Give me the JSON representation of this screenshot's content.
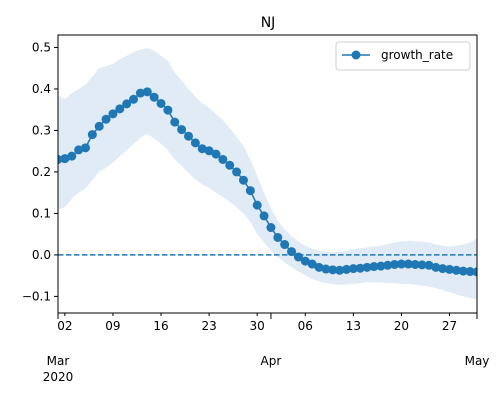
{
  "chart_data": {
    "type": "line",
    "title": "NJ",
    "xlabel": "",
    "ylabel": "",
    "x_start": "2020-03-01",
    "x_end": "2020-05-01",
    "ylim": [
      -0.14,
      0.53
    ],
    "y_ticks": [
      -0.1,
      0.0,
      0.1,
      0.2,
      0.3,
      0.4,
      0.5
    ],
    "y_tick_labels": [
      "−0.1",
      "0.0",
      "0.1",
      "0.2",
      "0.3",
      "0.4",
      "0.5"
    ],
    "x_minor_ticks": [
      {
        "date": "2020-03-02",
        "label": "02"
      },
      {
        "date": "2020-03-09",
        "label": "09"
      },
      {
        "date": "2020-03-16",
        "label": "16"
      },
      {
        "date": "2020-03-23",
        "label": "23"
      },
      {
        "date": "2020-03-30",
        "label": "30"
      },
      {
        "date": "2020-04-06",
        "label": "06"
      },
      {
        "date": "2020-04-13",
        "label": "13"
      },
      {
        "date": "2020-04-20",
        "label": "20"
      },
      {
        "date": "2020-04-27",
        "label": "27"
      }
    ],
    "x_major_ticks": [
      {
        "date": "2020-03-01",
        "label": "Mar",
        "sublabel": "2020"
      },
      {
        "date": "2020-04-01",
        "label": "Apr",
        "sublabel": ""
      },
      {
        "date": "2020-05-01",
        "label": "May",
        "sublabel": ""
      }
    ],
    "legend": {
      "position": "upper-right"
    },
    "reference_line": {
      "y": 0.0,
      "style": "dashed"
    },
    "series": [
      {
        "name": "growth_rate",
        "color": "#1f77b4",
        "band_color": "#dbe8f5",
        "x": [
          "2020-03-01",
          "2020-03-02",
          "2020-03-03",
          "2020-03-04",
          "2020-03-05",
          "2020-03-06",
          "2020-03-07",
          "2020-03-08",
          "2020-03-09",
          "2020-03-10",
          "2020-03-11",
          "2020-03-12",
          "2020-03-13",
          "2020-03-14",
          "2020-03-15",
          "2020-03-16",
          "2020-03-17",
          "2020-03-18",
          "2020-03-19",
          "2020-03-20",
          "2020-03-21",
          "2020-03-22",
          "2020-03-23",
          "2020-03-24",
          "2020-03-25",
          "2020-03-26",
          "2020-03-27",
          "2020-03-28",
          "2020-03-29",
          "2020-03-30",
          "2020-03-31",
          "2020-04-01",
          "2020-04-02",
          "2020-04-03",
          "2020-04-04",
          "2020-04-05",
          "2020-04-06",
          "2020-04-07",
          "2020-04-08",
          "2020-04-09",
          "2020-04-10",
          "2020-04-11",
          "2020-04-12",
          "2020-04-13",
          "2020-04-14",
          "2020-04-15",
          "2020-04-16",
          "2020-04-17",
          "2020-04-18",
          "2020-04-19",
          "2020-04-20",
          "2020-04-21",
          "2020-04-22",
          "2020-04-23",
          "2020-04-24",
          "2020-04-25",
          "2020-04-26",
          "2020-04-27",
          "2020-04-28",
          "2020-04-29",
          "2020-04-30",
          "2020-05-01"
        ],
        "values": [
          0.23,
          0.232,
          0.238,
          0.253,
          0.258,
          0.29,
          0.31,
          0.327,
          0.34,
          0.352,
          0.364,
          0.375,
          0.39,
          0.393,
          0.38,
          0.365,
          0.349,
          0.32,
          0.302,
          0.286,
          0.27,
          0.256,
          0.251,
          0.243,
          0.23,
          0.216,
          0.2,
          0.18,
          0.155,
          0.12,
          0.094,
          0.066,
          0.042,
          0.025,
          0.008,
          -0.005,
          -0.015,
          -0.022,
          -0.03,
          -0.034,
          -0.036,
          -0.037,
          -0.035,
          -0.033,
          -0.032,
          -0.03,
          -0.028,
          -0.027,
          -0.025,
          -0.023,
          -0.022,
          -0.022,
          -0.023,
          -0.024,
          -0.025,
          -0.03,
          -0.033,
          -0.035,
          -0.037,
          -0.039,
          -0.04,
          -0.041
        ],
        "upper": [
          0.385,
          0.375,
          0.39,
          0.4,
          0.41,
          0.43,
          0.45,
          0.455,
          0.46,
          0.472,
          0.48,
          0.488,
          0.495,
          0.498,
          0.492,
          0.48,
          0.468,
          0.44,
          0.42,
          0.4,
          0.382,
          0.365,
          0.355,
          0.34,
          0.325,
          0.305,
          0.285,
          0.262,
          0.23,
          0.19,
          0.15,
          0.112,
          0.082,
          0.062,
          0.045,
          0.032,
          0.022,
          0.015,
          0.01,
          0.008,
          0.007,
          0.007,
          0.01,
          0.014,
          0.016,
          0.018,
          0.02,
          0.022,
          0.026,
          0.03,
          0.032,
          0.034,
          0.033,
          0.032,
          0.03,
          0.025,
          0.022,
          0.02,
          0.022,
          0.025,
          0.03,
          0.04
        ],
        "lower": [
          0.11,
          0.115,
          0.135,
          0.15,
          0.16,
          0.18,
          0.2,
          0.21,
          0.222,
          0.238,
          0.252,
          0.268,
          0.282,
          0.292,
          0.28,
          0.268,
          0.252,
          0.23,
          0.214,
          0.198,
          0.182,
          0.17,
          0.162,
          0.15,
          0.14,
          0.128,
          0.115,
          0.1,
          0.08,
          0.05,
          0.03,
          0.01,
          -0.005,
          -0.018,
          -0.03,
          -0.04,
          -0.05,
          -0.058,
          -0.064,
          -0.068,
          -0.07,
          -0.072,
          -0.072,
          -0.07,
          -0.068,
          -0.066,
          -0.066,
          -0.066,
          -0.068,
          -0.068,
          -0.07,
          -0.07,
          -0.072,
          -0.074,
          -0.076,
          -0.08,
          -0.085,
          -0.09,
          -0.095,
          -0.1,
          -0.104,
          -0.108
        ]
      }
    ]
  }
}
